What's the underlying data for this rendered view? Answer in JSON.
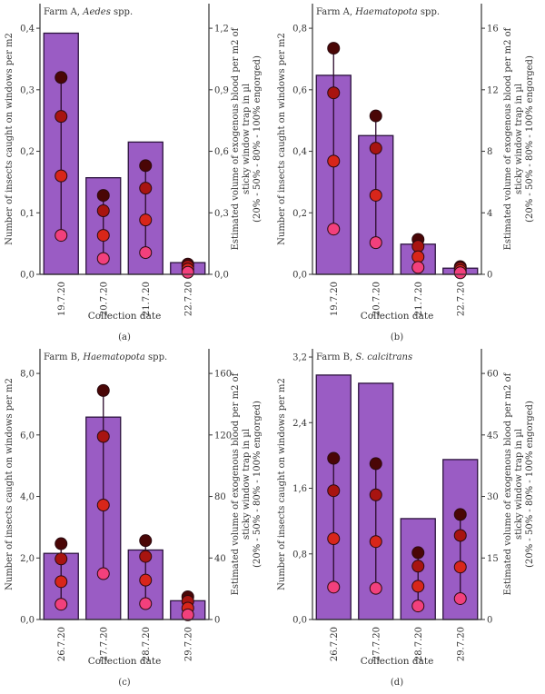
{
  "colors": {
    "bar_fill": "#9a5cc4",
    "bar_stroke": "#2b123d",
    "axis": "#333333",
    "line": "#2a0a2a",
    "dot_20": "#f2407c",
    "dot_50": "#d8261a",
    "dot_80": "#a81410",
    "dot_100": "#4a0606"
  },
  "chart_data": [
    {
      "type": "bar",
      "panel_label": "(a)",
      "title_prefix": "Farm A, ",
      "title_italic": "Aedes",
      "title_suffix": " spp.",
      "xlabel": "Collection date",
      "ylabel": "Number of insects caught on windows per m2",
      "ylabel_right": [
        "Estimated volume of exogenous blood per m2 of",
        "sticky window trap in µl",
        "(20% - 50% - 80% - 100% engorged)"
      ],
      "categories": [
        "19.7.20",
        "20.7.20",
        "21.7.20",
        "22.7.20"
      ],
      "ylim": [
        0,
        0.44
      ],
      "ylim_right": [
        0,
        1.32
      ],
      "yticks": [
        {
          "v": 0,
          "label": "0,0"
        },
        {
          "v": 0.1,
          "label": "0,1"
        },
        {
          "v": 0.2,
          "label": "0,2"
        },
        {
          "v": 0.3,
          "label": "0,3"
        },
        {
          "v": 0.4,
          "label": "0,4"
        }
      ],
      "yticks_right": [
        {
          "v": 0,
          "label": "0,0"
        },
        {
          "v": 0.3,
          "label": "0,3"
        },
        {
          "v": 0.6,
          "label": "0,6"
        },
        {
          "v": 0.9,
          "label": "0,9"
        },
        {
          "v": 1.2,
          "label": "1,2"
        }
      ],
      "bars": [
        0.392,
        0.157,
        0.215,
        0.019
      ],
      "blood_series": [
        "20%",
        "50%",
        "80%",
        "100%"
      ],
      "blood": [
        [
          0.19,
          0.48,
          0.77,
          0.96
        ],
        [
          0.077,
          0.19,
          0.31,
          0.385
        ],
        [
          0.106,
          0.265,
          0.42,
          0.53
        ],
        [
          0.01,
          0.025,
          0.04,
          0.05
        ]
      ]
    },
    {
      "type": "bar",
      "panel_label": "(b)",
      "title_prefix": "Farm A, ",
      "title_italic": "Haematopota",
      "title_suffix": " spp.",
      "xlabel": "Collection date",
      "ylabel": "Number of insects caught on windows per m2",
      "ylabel_right": [
        "Estimated volume of exogenous blood per m2 of",
        "sticky window trap in µl",
        "(20% - 50% - 80% - 100% engorged)"
      ],
      "categories": [
        "19.7.20",
        "20.7.20",
        "21.7.20",
        "22.7.20"
      ],
      "ylim": [
        0,
        0.88
      ],
      "ylim_right": [
        0,
        17.6
      ],
      "yticks": [
        {
          "v": 0,
          "label": "0,0"
        },
        {
          "v": 0.2,
          "label": "0,2"
        },
        {
          "v": 0.4,
          "label": "0,4"
        },
        {
          "v": 0.6,
          "label": "0,6"
        },
        {
          "v": 0.8,
          "label": "0,8"
        }
      ],
      "yticks_right": [
        {
          "v": 0,
          "label": "0"
        },
        {
          "v": 4,
          "label": "4"
        },
        {
          "v": 8,
          "label": "8"
        },
        {
          "v": 12,
          "label": "12"
        },
        {
          "v": 16,
          "label": "16"
        }
      ],
      "bars": [
        0.647,
        0.451,
        0.098,
        0.02
      ],
      "blood_series": [
        "20%",
        "50%",
        "80%",
        "100%"
      ],
      "blood": [
        [
          2.94,
          7.36,
          11.8,
          14.7
        ],
        [
          2.06,
          5.14,
          8.2,
          10.3
        ],
        [
          0.45,
          1.14,
          1.82,
          2.27
        ],
        [
          0.1,
          0.25,
          0.4,
          0.5
        ]
      ]
    },
    {
      "type": "bar",
      "panel_label": "(c)",
      "title_prefix": "Farm B, ",
      "title_italic": "Haematopota",
      "title_suffix": " spp.",
      "xlabel": "Collection date",
      "ylabel": "Number of insects caught on windows per m2",
      "ylabel_right": [
        "Estimated volume of exogenous blood per m2 of",
        "sticky window trap in µl",
        "(20% - 50% - 80% - 100% engorged)"
      ],
      "categories": [
        "26.7.20",
        "27.7.20",
        "28.7.20",
        "29.7.20"
      ],
      "ylim": [
        0,
        8.8
      ],
      "ylim_right": [
        0,
        176
      ],
      "yticks": [
        {
          "v": 0,
          "label": "0,0"
        },
        {
          "v": 2,
          "label": "2,0"
        },
        {
          "v": 4,
          "label": "4,0"
        },
        {
          "v": 6,
          "label": "6,0"
        },
        {
          "v": 8,
          "label": "8,0"
        }
      ],
      "yticks_right": [
        {
          "v": 0,
          "label": "0"
        },
        {
          "v": 40,
          "label": "40"
        },
        {
          "v": 80,
          "label": "80"
        },
        {
          "v": 120,
          "label": "120"
        },
        {
          "v": 160,
          "label": "160"
        }
      ],
      "bars": [
        2.15,
        6.58,
        2.26,
        0.61
      ],
      "blood_series": [
        "20%",
        "50%",
        "80%",
        "100%"
      ],
      "blood": [
        [
          9.9,
          24.6,
          39.4,
          49.3
        ],
        [
          29.8,
          74.4,
          119,
          148.9
        ],
        [
          10.3,
          25.6,
          41,
          51.3
        ],
        [
          3,
          7.4,
          11.8,
          14.8
        ]
      ]
    },
    {
      "type": "bar",
      "panel_label": "(d)",
      "title_prefix": "Farm B, ",
      "title_italic": "S. calcitrans",
      "title_suffix": "",
      "xlabel": "Collection date",
      "ylabel": "Number of insects caught on windows per m2",
      "ylabel_right": [
        "Estimated volume of exogenous blood per m2 of",
        "sticky window trap in µl",
        "(20% - 50% - 80% - 100% engorged)"
      ],
      "categories": [
        "26.7.20",
        "27.7.20",
        "28.7.20",
        "29.7.20"
      ],
      "ylim": [
        0,
        3.3
      ],
      "ylim_right": [
        0,
        66
      ],
      "yticks": [
        {
          "v": 0,
          "label": "0,0"
        },
        {
          "v": 0.8,
          "label": "0,8"
        },
        {
          "v": 1.6,
          "label": "1,6"
        },
        {
          "v": 2.4,
          "label": "2,4"
        },
        {
          "v": 3.2,
          "label": "3,2"
        }
      ],
      "yticks_right": [
        {
          "v": 0,
          "label": "0"
        },
        {
          "v": 15,
          "label": "15"
        },
        {
          "v": 30,
          "label": "30"
        },
        {
          "v": 45,
          "label": "45"
        },
        {
          "v": 60,
          "label": "60"
        }
      ],
      "bars": [
        2.98,
        2.88,
        1.23,
        1.95
      ],
      "blood_series": [
        "20%",
        "50%",
        "80%",
        "100%"
      ],
      "blood": [
        [
          7.9,
          19.7,
          31.4,
          39.3
        ],
        [
          7.6,
          19,
          30.4,
          38
        ],
        [
          3.3,
          8.1,
          13,
          16.3
        ],
        [
          5.1,
          12.8,
          20.5,
          25.6
        ]
      ]
    }
  ]
}
